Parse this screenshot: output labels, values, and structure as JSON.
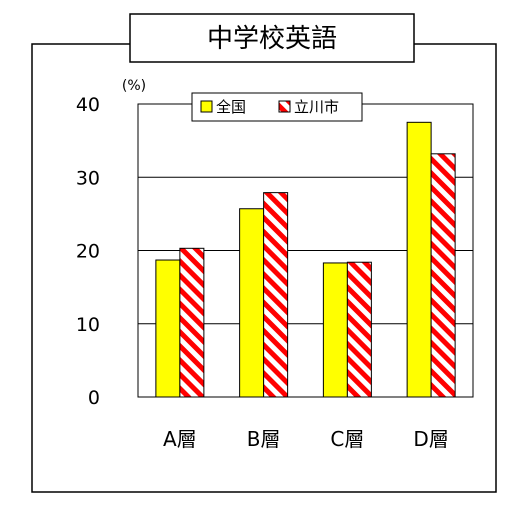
{
  "chart_data": {
    "type": "bar",
    "title": "中学校英語",
    "unit_label": "(%)",
    "categories": [
      "A層",
      "B層",
      "C層",
      "D層"
    ],
    "series": [
      {
        "name": "全国",
        "values": [
          18.7,
          25.7,
          18.3,
          37.5
        ],
        "color": "#ffff00",
        "pattern": "solid"
      },
      {
        "name": "立川市",
        "values": [
          20.3,
          27.9,
          18.4,
          33.2
        ],
        "color": "#ff0000",
        "pattern": "diagonal-stripes"
      }
    ],
    "yticks": [
      0,
      10,
      20,
      30,
      40
    ],
    "ylim": [
      0,
      40
    ],
    "grid": true,
    "legend_position": "top"
  }
}
